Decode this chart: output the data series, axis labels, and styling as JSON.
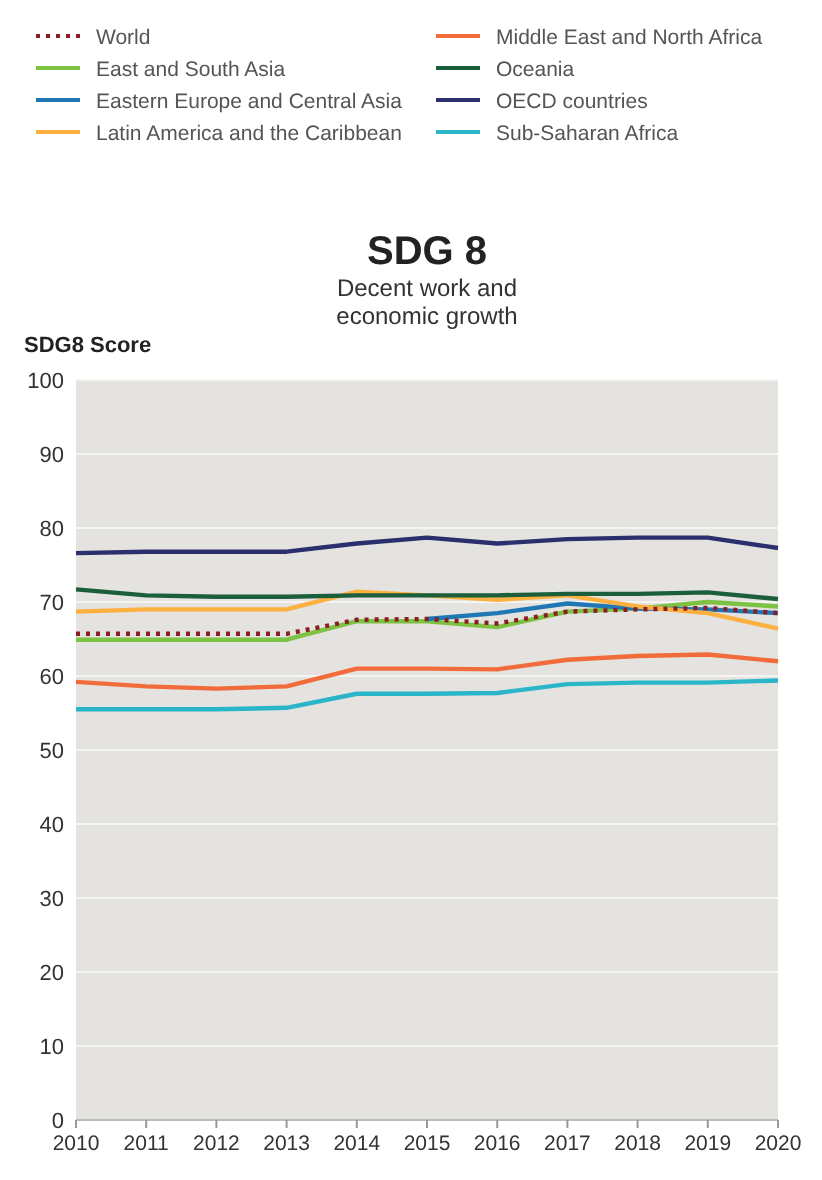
{
  "chart_data": {
    "type": "line",
    "title": "SDG 8",
    "subtitle": "Decent work and economic growth",
    "ylabel": "SDG8 Score",
    "x": [
      2010,
      2011,
      2012,
      2013,
      2014,
      2015,
      2016,
      2017,
      2018,
      2019,
      2020
    ],
    "xlim": [
      2010,
      2020
    ],
    "xticks": [
      2010,
      2011,
      2012,
      2013,
      2014,
      2015,
      2016,
      2017,
      2018,
      2019,
      2020
    ],
    "ylim": [
      0,
      100
    ],
    "yticks": [
      0,
      10,
      20,
      30,
      40,
      50,
      60,
      70,
      80,
      90,
      100
    ],
    "grid": "y",
    "legend": "top",
    "marker": "none",
    "series": [
      {
        "name": "World",
        "color": "#8b1e24",
        "line_style": "dotted",
        "values": [
          65.7,
          65.7,
          65.7,
          65.7,
          67.6,
          67.7,
          67.1,
          68.7,
          69.0,
          69.2,
          68.5
        ]
      },
      {
        "name": "East and South Asia",
        "color": "#7dc242",
        "values": [
          64.9,
          64.9,
          64.9,
          64.9,
          67.4,
          67.4,
          66.6,
          68.7,
          69.1,
          70.0,
          69.4
        ]
      },
      {
        "name": "Eastern Europe and Central Asia",
        "color": "#1f78b4",
        "values": [
          null,
          null,
          null,
          null,
          null,
          67.7,
          68.5,
          69.8,
          69.1,
          69.0,
          68.5
        ]
      },
      {
        "name": "Latin America and the Caribbean",
        "color": "#fbb040",
        "values": [
          68.7,
          69.0,
          69.0,
          69.0,
          71.4,
          70.9,
          70.3,
          70.9,
          69.4,
          68.5,
          66.4
        ]
      },
      {
        "name": "Middle East and North Africa",
        "color": "#f26b3a",
        "values": [
          59.2,
          58.6,
          58.3,
          58.6,
          61.0,
          61.0,
          60.9,
          62.2,
          62.7,
          62.9,
          62.0
        ]
      },
      {
        "name": "Oceania",
        "color": "#1b5e3b",
        "values": [
          71.7,
          70.9,
          70.7,
          70.7,
          70.9,
          70.9,
          70.9,
          71.1,
          71.1,
          71.3,
          70.4
        ]
      },
      {
        "name": "OECD countries",
        "color": "#2b2f6e",
        "values": [
          76.6,
          76.8,
          76.8,
          76.8,
          77.9,
          78.7,
          77.9,
          78.5,
          78.7,
          78.7,
          77.3
        ]
      },
      {
        "name": "Sub-Saharan Africa",
        "color": "#2bb5c8",
        "values": [
          55.5,
          55.5,
          55.5,
          55.7,
          57.6,
          57.6,
          57.7,
          58.9,
          59.1,
          59.1,
          59.4
        ]
      }
    ]
  }
}
